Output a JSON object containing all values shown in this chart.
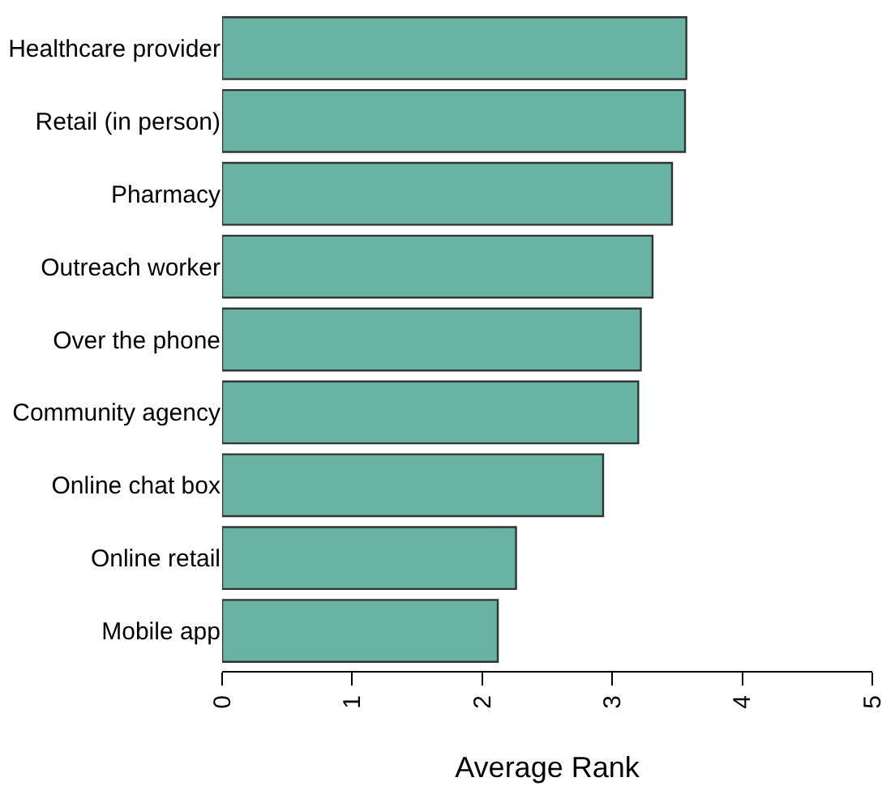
{
  "chart_data": {
    "type": "bar",
    "orientation": "horizontal",
    "xlabel": "Average Rank",
    "categories": [
      "Healthcare provider",
      "Retail (in person)",
      "Pharmacy",
      "Outreach worker",
      "Over the phone",
      "Community agency",
      "Online chat box",
      "Online retail",
      "Mobile app"
    ],
    "values": [
      3.57,
      3.56,
      3.46,
      3.31,
      3.22,
      3.2,
      2.93,
      2.26,
      2.12
    ],
    "color": "#69b3a2",
    "xlim": [
      0,
      5
    ],
    "xticks": [
      0,
      1,
      2,
      3,
      4,
      5
    ],
    "legend": false
  }
}
